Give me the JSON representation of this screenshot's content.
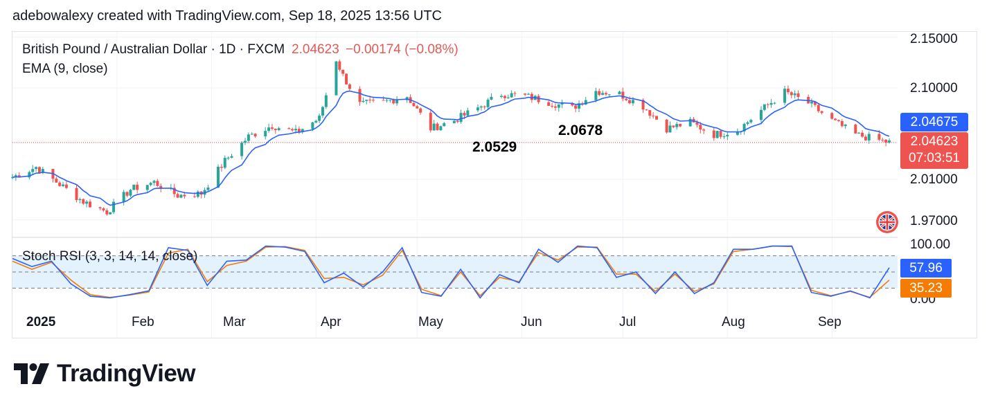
{
  "header": {
    "attribution": "adebowalexy created with TradingView.com, Sep 18, 2025 13:56 UTC"
  },
  "legend": {
    "symbol": "British Pound / Australian Dollar · 1D · FXCM",
    "price": "2.04623",
    "change": "−0.00174 (−0.08%)",
    "ema_label": "EMA (9, close)",
    "stoch_label": "Stoch RSI (3, 3, 14, 14, close)"
  },
  "price_axis": {
    "labels": [
      "2.15000",
      "2.10000",
      "2.01000",
      "1.97000"
    ]
  },
  "price_badges": {
    "ema_value": "2.04675",
    "last_price": "2.04623",
    "countdown": "07:03:51"
  },
  "stoch_axis": {
    "labels": [
      "100.00",
      "0.00"
    ]
  },
  "stoch_badges": {
    "k_value": "57.96",
    "d_value": "35.23"
  },
  "time_axis": {
    "labels": [
      "2025",
      "Feb",
      "Mar",
      "Apr",
      "May",
      "Jun",
      "Jul",
      "Aug",
      "Sep"
    ]
  },
  "annotations": {
    "low_label": "2.0529",
    "high_label": "2.0678"
  },
  "brand": {
    "name": "TradingView"
  },
  "colors": {
    "up": "#26a69a",
    "down": "#ef5350",
    "ema": "#2962ff",
    "stoch_k": "#2962ff",
    "stoch_d": "#f57c00",
    "band": "#e3f2fd",
    "price_line": "#f23645"
  },
  "chart_data": {
    "type": "candlestick",
    "title": "British Pound / Australian Dollar · 1D · FXCM",
    "xlabel": "",
    "ylabel": "",
    "ylim": [
      1.96,
      2.16
    ],
    "x_start": "2025-01-01",
    "x_end": "2025-09-18",
    "close_series": {
      "dates": [
        "2025-01-01",
        "2025-01-08",
        "2025-01-15",
        "2025-01-22",
        "2025-01-29",
        "2025-02-05",
        "2025-02-12",
        "2025-02-19",
        "2025-02-26",
        "2025-03-05",
        "2025-03-12",
        "2025-03-19",
        "2025-03-26",
        "2025-04-02",
        "2025-04-07",
        "2025-04-09",
        "2025-04-14",
        "2025-04-21",
        "2025-04-28",
        "2025-05-05",
        "2025-05-12",
        "2025-05-19",
        "2025-05-26",
        "2025-06-02",
        "2025-06-09",
        "2025-06-16",
        "2025-06-23",
        "2025-06-30",
        "2025-07-07",
        "2025-07-14",
        "2025-07-21",
        "2025-07-28",
        "2025-08-04",
        "2025-08-11",
        "2025-08-18",
        "2025-08-25",
        "2025-09-01",
        "2025-09-08",
        "2025-09-18"
      ],
      "values": [
        2.012,
        2.022,
        2.005,
        1.988,
        1.978,
        2.0,
        2.007,
        1.994,
        1.996,
        2.028,
        2.052,
        2.063,
        2.056,
        2.07,
        2.128,
        2.112,
        2.084,
        2.086,
        2.092,
        2.06,
        2.068,
        2.08,
        2.094,
        2.092,
        2.086,
        2.08,
        2.097,
        2.094,
        2.082,
        2.06,
        2.066,
        2.054,
        2.058,
        2.078,
        2.096,
        2.085,
        2.068,
        2.054,
        2.0462
      ]
    },
    "ema": {
      "name": "EMA (9, close)",
      "last": 2.04675
    },
    "annotations": [
      {
        "date": "2025-05-05",
        "value": 2.0529,
        "text": "2.0529"
      },
      {
        "date": "2025-06-13",
        "value": 2.0678,
        "text": "2.0678"
      }
    ],
    "stoch_rsi": {
      "name": "Stoch RSI (3, 3, 14, 14, close)",
      "ylim": [
        0,
        100
      ],
      "bands": [
        20,
        80
      ],
      "k_last": 57.96,
      "d_last": 35.23,
      "k_values": [
        75,
        60,
        70,
        28,
        5,
        2,
        8,
        15,
        95,
        90,
        25,
        70,
        72,
        98,
        96,
        88,
        30,
        48,
        22,
        50,
        95,
        12,
        5,
        55,
        2,
        45,
        30,
        92,
        68,
        98,
        95,
        40,
        50,
        10,
        50,
        10,
        30,
        92,
        92,
        98,
        98,
        12,
        5,
        15,
        2,
        58
      ],
      "d_values": [
        70,
        55,
        68,
        35,
        8,
        3,
        7,
        13,
        85,
        92,
        32,
        62,
        70,
        96,
        97,
        90,
        38,
        40,
        26,
        44,
        90,
        18,
        6,
        50,
        6,
        40,
        32,
        86,
        72,
        96,
        96,
        46,
        46,
        14,
        46,
        14,
        28,
        88,
        92,
        98,
        97,
        16,
        6,
        14,
        3,
        35
      ]
    }
  }
}
